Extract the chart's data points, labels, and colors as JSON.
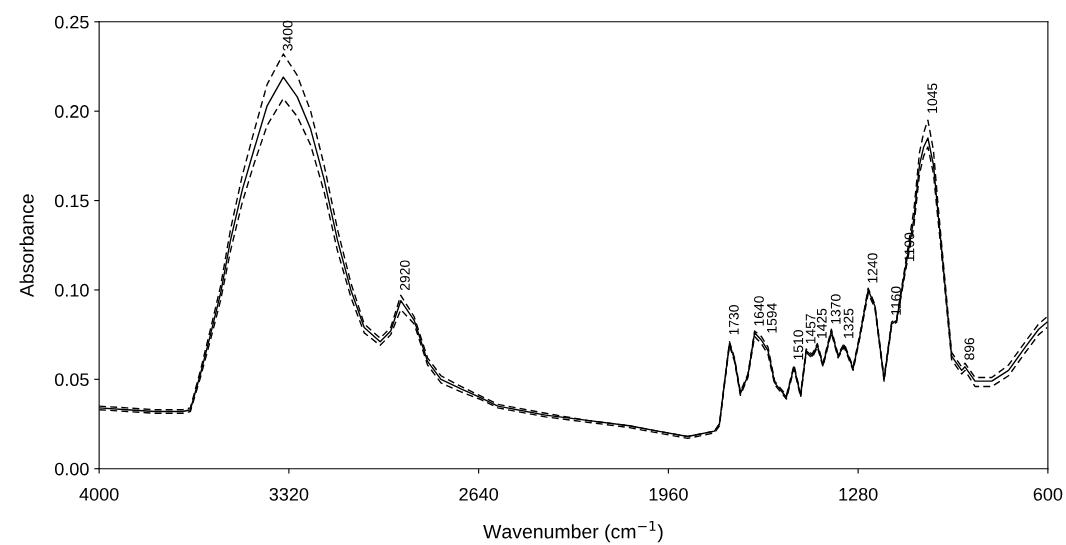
{
  "chart_data": {
    "type": "line",
    "xlabel": "Wavenumber (cm$^{−1}$)",
    "ylabel": "Absorbance",
    "xlim": [
      4000,
      600
    ],
    "xticks": [
      4000,
      3320,
      2640,
      1960,
      1280,
      600
    ],
    "ylim": [
      0,
      0.25
    ],
    "yticks": [
      {
        "value": 0,
        "label": "0.00"
      },
      {
        "value": 0.05,
        "label": "0.05"
      },
      {
        "value": 0.1,
        "label": "0.10"
      },
      {
        "value": 0.15,
        "label": "0.15"
      },
      {
        "value": 0.2,
        "label": "0.20"
      },
      {
        "value": 0.25,
        "label": "0.25"
      }
    ],
    "grid": false,
    "legend": false,
    "marker": "none",
    "series": [
      {
        "color": "#000000",
        "line_style": "solid",
        "x": [
          4000,
          3900,
          3800,
          3700,
          3673,
          3637,
          3601,
          3565,
          3529,
          3487,
          3446,
          3398,
          3340,
          3290,
          3242,
          3194,
          3146,
          3098,
          3050,
          2993,
          2955,
          2919,
          2871,
          2823,
          2775,
          2703,
          2637,
          2571,
          2400,
          2250,
          2100,
          1998,
          1891,
          1795,
          1777,
          1759,
          1741,
          1723,
          1702,
          1675,
          1651,
          1627,
          1603,
          1579,
          1537,
          1510,
          1486,
          1466,
          1445,
          1426,
          1406,
          1376,
          1352,
          1330,
          1298,
          1274,
          1244,
          1220,
          1187,
          1160,
          1142,
          1112,
          1080,
          1060,
          1045,
          1030,
          1010,
          995,
          981,
          945,
          909,
          897,
          861,
          801,
          741,
          681,
          633,
          603
        ],
        "values": [
          0.034,
          0.033,
          0.032,
          0.032,
          0.033,
          0.053,
          0.075,
          0.098,
          0.128,
          0.156,
          0.178,
          0.203,
          0.219,
          0.208,
          0.19,
          0.162,
          0.128,
          0.1,
          0.079,
          0.071,
          0.077,
          0.094,
          0.083,
          0.06,
          0.05,
          0.0446,
          0.04,
          0.035,
          0.03,
          0.027,
          0.024,
          0.021,
          0.018,
          0.021,
          0.025,
          0.048,
          0.07,
          0.061,
          0.042,
          0.052,
          0.076,
          0.072,
          0.066,
          0.048,
          0.04,
          0.057,
          0.041,
          0.066,
          0.063,
          0.069,
          0.058,
          0.077,
          0.063,
          0.069,
          0.056,
          0.074,
          0.1,
          0.091,
          0.05,
          0.081,
          0.083,
          0.111,
          0.14,
          0.17,
          0.18,
          0.185,
          0.17,
          0.145,
          0.123,
          0.063,
          0.055,
          0.057,
          0.049,
          0.049,
          0.055,
          0.068,
          0.078,
          0.082
        ]
      },
      {
        "color": "#000000",
        "line_style": "dashed",
        "x": [
          4000,
          3900,
          3800,
          3700,
          3673,
          3637,
          3601,
          3565,
          3529,
          3487,
          3446,
          3398,
          3340,
          3290,
          3242,
          3194,
          3146,
          3098,
          3050,
          2993,
          2955,
          2919,
          2871,
          2823,
          2775,
          2703,
          2637,
          2571,
          2400,
          2250,
          2100,
          1998,
          1891,
          1795,
          1777,
          1759,
          1741,
          1723,
          1702,
          1675,
          1651,
          1627,
          1603,
          1579,
          1537,
          1510,
          1486,
          1466,
          1445,
          1426,
          1406,
          1376,
          1352,
          1330,
          1298,
          1274,
          1244,
          1220,
          1187,
          1160,
          1142,
          1112,
          1080,
          1060,
          1045,
          1030,
          1010,
          995,
          981,
          945,
          909,
          897,
          861,
          801,
          741,
          681,
          633,
          603
        ],
        "values": [
          0.035,
          0.034,
          0.033,
          0.033,
          0.034,
          0.055,
          0.078,
          0.102,
          0.134,
          0.164,
          0.188,
          0.215,
          0.232,
          0.22,
          0.2,
          0.17,
          0.134,
          0.104,
          0.081,
          0.073,
          0.079,
          0.097,
          0.085,
          0.062,
          0.052,
          0.046,
          0.041,
          0.036,
          0.031,
          0.027,
          0.024,
          0.021,
          0.018,
          0.021,
          0.025,
          0.048,
          0.071,
          0.062,
          0.043,
          0.053,
          0.077,
          0.074,
          0.068,
          0.049,
          0.041,
          0.058,
          0.042,
          0.067,
          0.064,
          0.07,
          0.059,
          0.078,
          0.064,
          0.07,
          0.057,
          0.075,
          0.101,
          0.092,
          0.051,
          0.082,
          0.084,
          0.113,
          0.145,
          0.177,
          0.188,
          0.195,
          0.178,
          0.15,
          0.126,
          0.065,
          0.057,
          0.059,
          0.051,
          0.051,
          0.058,
          0.071,
          0.081,
          0.085
        ]
      },
      {
        "color": "#000000",
        "line_style": "dashed",
        "x": [
          4000,
          3900,
          3800,
          3700,
          3673,
          3637,
          3601,
          3565,
          3529,
          3487,
          3446,
          3398,
          3340,
          3290,
          3242,
          3194,
          3146,
          3098,
          3050,
          2993,
          2955,
          2919,
          2871,
          2823,
          2775,
          2703,
          2637,
          2571,
          2400,
          2250,
          2100,
          1998,
          1891,
          1795,
          1777,
          1759,
          1741,
          1723,
          1702,
          1675,
          1651,
          1627,
          1603,
          1579,
          1537,
          1510,
          1486,
          1466,
          1445,
          1426,
          1406,
          1376,
          1352,
          1330,
          1298,
          1274,
          1244,
          1220,
          1187,
          1160,
          1142,
          1112,
          1080,
          1060,
          1045,
          1030,
          1010,
          995,
          981,
          945,
          909,
          897,
          861,
          801,
          741,
          681,
          633,
          603
        ],
        "values": [
          0.033,
          0.032,
          0.031,
          0.031,
          0.032,
          0.051,
          0.072,
          0.094,
          0.122,
          0.149,
          0.17,
          0.192,
          0.207,
          0.197,
          0.181,
          0.155,
          0.122,
          0.096,
          0.076,
          0.069,
          0.075,
          0.089,
          0.081,
          0.058,
          0.048,
          0.043,
          0.039,
          0.034,
          0.029,
          0.026,
          0.023,
          0.02,
          0.017,
          0.02,
          0.024,
          0.047,
          0.069,
          0.06,
          0.041,
          0.051,
          0.074,
          0.07,
          0.064,
          0.047,
          0.039,
          0.056,
          0.04,
          0.065,
          0.062,
          0.068,
          0.057,
          0.076,
          0.062,
          0.068,
          0.055,
          0.073,
          0.098,
          0.09,
          0.049,
          0.08,
          0.082,
          0.109,
          0.136,
          0.165,
          0.175,
          0.18,
          0.165,
          0.141,
          0.12,
          0.061,
          0.053,
          0.055,
          0.046,
          0.046,
          0.052,
          0.065,
          0.075,
          0.079
        ]
      }
    ],
    "annotations": [
      {
        "text": "3400",
        "x": 3340,
        "y": 0.232
      },
      {
        "text": "2920",
        "x": 2920,
        "y": 0.098
      },
      {
        "text": "1730",
        "x": 1741,
        "y": 0.073
      },
      {
        "text": "1640",
        "x": 1651,
        "y": 0.078
      },
      {
        "text": "1594",
        "x": 1605,
        "y": 0.074
      },
      {
        "text": "1510",
        "x": 1510,
        "y": 0.059
      },
      {
        "text": "1457",
        "x": 1466,
        "y": 0.068
      },
      {
        "text": "1425",
        "x": 1426,
        "y": 0.071
      },
      {
        "text": "1370",
        "x": 1376,
        "y": 0.079
      },
      {
        "text": "1325",
        "x": 1330,
        "y": 0.071
      },
      {
        "text": "1240",
        "x": 1244,
        "y": 0.102
      },
      {
        "text": "1160",
        "x": 1160,
        "y": 0.084
      },
      {
        "text": "1100",
        "x": 1112,
        "y": 0.114
      },
      {
        "text": "1045",
        "x": 1030,
        "y": 0.197
      },
      {
        "text": "896",
        "x": 897,
        "y": 0.059
      }
    ]
  }
}
